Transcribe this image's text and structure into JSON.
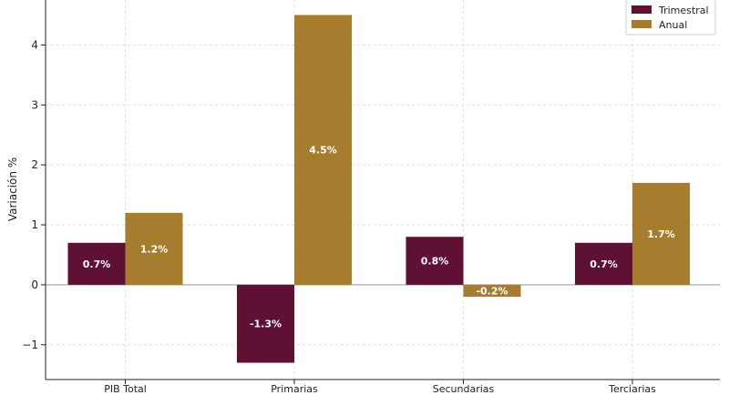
{
  "chart_data": {
    "type": "bar",
    "categories": [
      "PIB Total",
      "Primarias",
      "Secundarias",
      "Terciarias"
    ],
    "series": [
      {
        "name": "Trimestral",
        "values": [
          0.7,
          -1.3,
          0.8,
          0.7
        ],
        "labels": [
          "0.7%",
          "-1.3%",
          "0.8%",
          "0.7%"
        ],
        "color": "#5e1133"
      },
      {
        "name": "Anual",
        "values": [
          1.2,
          4.5,
          -0.2,
          1.7
        ],
        "labels": [
          "1.2%",
          "4.5%",
          "-0.2%",
          "1.7%"
        ],
        "color": "#a67c2e"
      }
    ],
    "ylabel": "Variación %",
    "ylim": [
      -1.58,
      4.75
    ],
    "yticks": [
      -1,
      0,
      1,
      2,
      3,
      4
    ],
    "ytick_labels": [
      "−1",
      "0",
      "1",
      "2",
      "3",
      "4"
    ],
    "grid": true,
    "legend_position": "top-right"
  }
}
